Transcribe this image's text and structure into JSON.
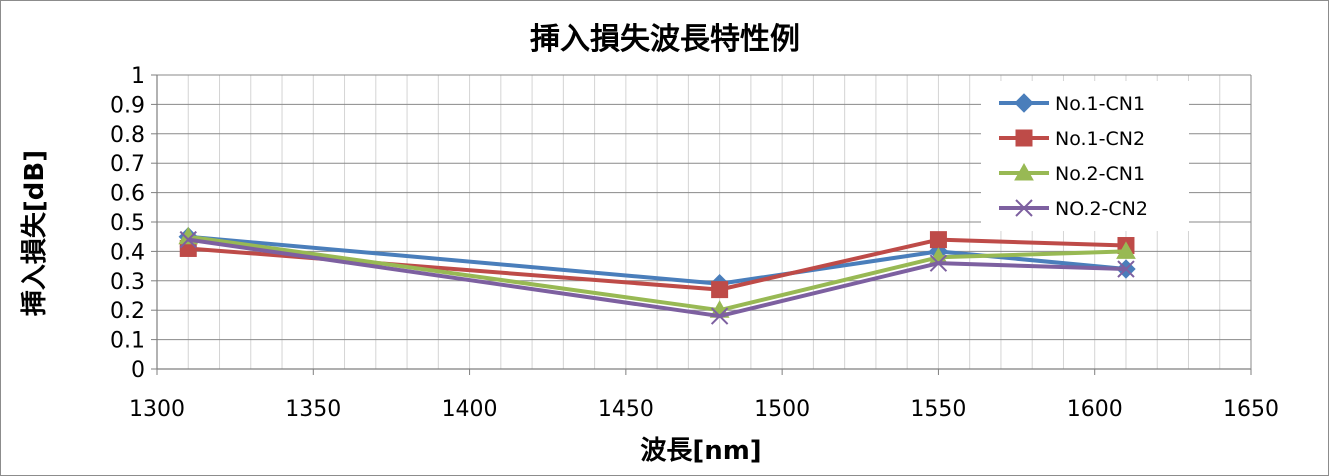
{
  "chart_data": {
    "type": "line",
    "title": "挿入損失波長特性例",
    "xlabel": "波長[nm]",
    "ylabel": "挿入損失[dB]",
    "xlim": [
      1300,
      1650
    ],
    "ylim": [
      0,
      1
    ],
    "x_ticks": [
      "1300",
      "1350",
      "1400",
      "1450",
      "1500",
      "1550",
      "1600",
      "1650"
    ],
    "y_ticks": [
      "0",
      "0.1",
      "0.2",
      "0.3",
      "0.4",
      "0.5",
      "0.6",
      "0.7",
      "0.8",
      "0.9",
      "1"
    ],
    "grid": true,
    "legend_position": "top-right",
    "x": [
      1310,
      1480,
      1550,
      1610
    ],
    "series": [
      {
        "name": "No.1-CN1",
        "values": [
          0.45,
          0.29,
          0.4,
          0.34
        ],
        "color": "#4a7ebb",
        "marker": "diamond"
      },
      {
        "name": "No.1-CN2",
        "values": [
          0.41,
          0.27,
          0.44,
          0.42
        ],
        "color": "#be4b48",
        "marker": "square"
      },
      {
        "name": "No.2-CN1",
        "values": [
          0.45,
          0.2,
          0.38,
          0.4
        ],
        "color": "#98b954",
        "marker": "triangle"
      },
      {
        "name": "NO.2-CN2",
        "values": [
          0.44,
          0.18,
          0.36,
          0.34
        ],
        "color": "#7d60a0",
        "marker": "x"
      }
    ]
  }
}
